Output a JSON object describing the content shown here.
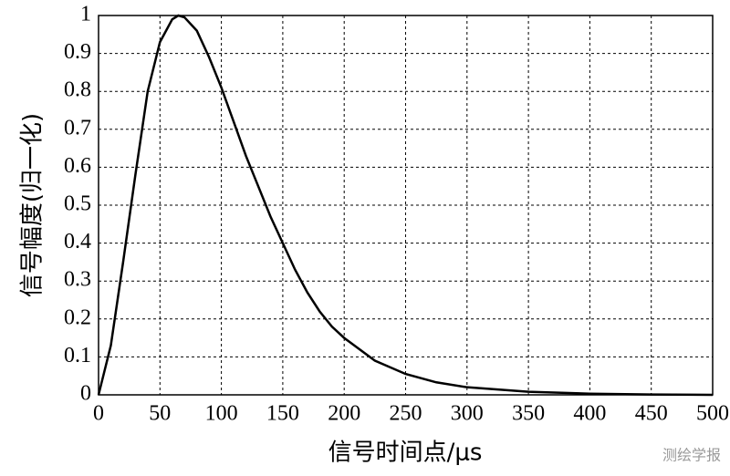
{
  "chart_data": {
    "type": "line",
    "x_label": "信号时间点/μs",
    "y_label": "信号幅度(归一化)",
    "watermark": "测绘学报",
    "x": [
      0,
      10,
      20,
      30,
      40,
      50,
      60,
      65,
      70,
      80,
      90,
      100,
      110,
      120,
      130,
      140,
      150,
      160,
      170,
      180,
      190,
      200,
      225,
      250,
      275,
      300,
      350,
      400,
      450,
      500
    ],
    "series": [
      {
        "color": "#000000",
        "values": [
          0,
          0.13,
          0.35,
          0.58,
          0.8,
          0.93,
          0.99,
          1.0,
          0.995,
          0.96,
          0.89,
          0.81,
          0.72,
          0.63,
          0.55,
          0.47,
          0.4,
          0.33,
          0.27,
          0.22,
          0.18,
          0.15,
          0.09,
          0.055,
          0.033,
          0.02,
          0.008,
          0.003,
          0.001,
          0.0
        ]
      }
    ],
    "xlim": [
      0,
      500
    ],
    "xticks": [
      0,
      50,
      100,
      150,
      200,
      250,
      300,
      350,
      400,
      450,
      500
    ],
    "ylim": [
      0,
      1
    ],
    "yticks": [
      0,
      0.1,
      0.2,
      0.3,
      0.4,
      0.5,
      0.6,
      0.7,
      0.8,
      0.9,
      1
    ],
    "grid": true
  }
}
